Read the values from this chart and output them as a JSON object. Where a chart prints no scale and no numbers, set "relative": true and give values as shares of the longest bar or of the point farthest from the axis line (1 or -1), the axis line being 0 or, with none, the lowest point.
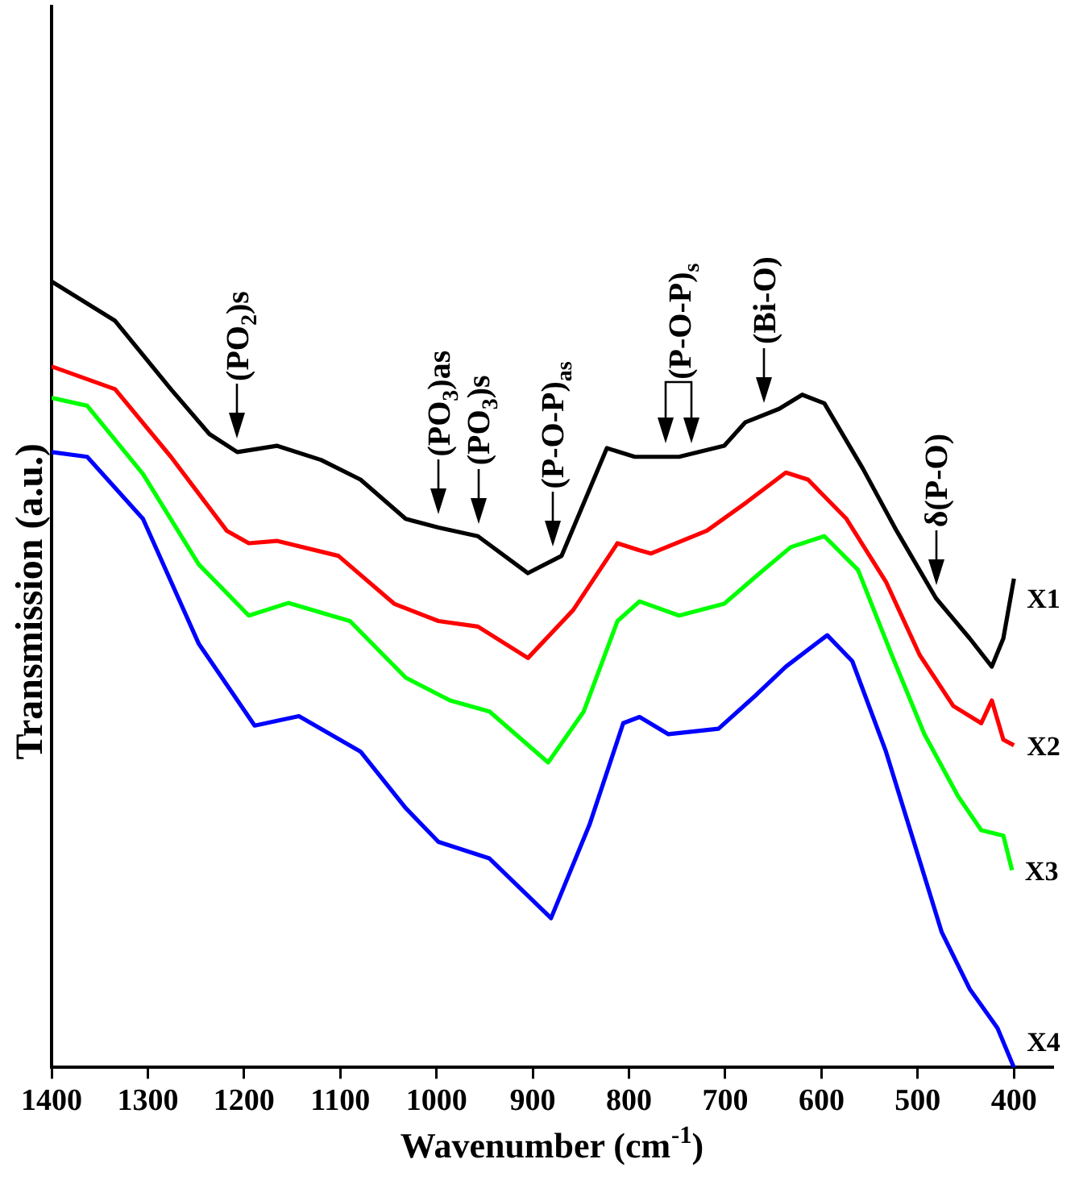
{
  "chart_data": {
    "type": "line",
    "relative": true,
    "xlabel": "Wavenumber (cm$^{-1}$)",
    "ylabel": "Transmission (a.u.)",
    "xlim": [
      1400,
      360
    ],
    "xticks": [
      1400,
      1300,
      1200,
      1100,
      1000,
      900,
      800,
      700,
      600,
      500,
      400
    ],
    "series": [
      {
        "name": "X1",
        "color": "#000000",
        "x": [
          1400,
          1334,
          1276,
          1236,
          1207,
          1166,
          1120,
          1079,
          1032,
          998,
          957,
          905,
          870,
          823,
          794,
          748,
          701,
          679,
          644,
          620,
          597,
          557,
          522,
          481,
          446,
          423,
          411,
          400
        ],
        "values": [
          1.0,
          0.95,
          0.863,
          0.806,
          0.783,
          0.791,
          0.773,
          0.748,
          0.698,
          0.687,
          0.676,
          0.629,
          0.651,
          0.788,
          0.777,
          0.777,
          0.791,
          0.821,
          0.838,
          0.856,
          0.845,
          0.762,
          0.683,
          0.597,
          0.546,
          0.51,
          0.546,
          0.622
        ]
      },
      {
        "name": "X2",
        "color": "#ff0000",
        "x": [
          1400,
          1334,
          1276,
          1218,
          1195,
          1166,
          1102,
          1044,
          998,
          957,
          905,
          858,
          812,
          789,
          777,
          719,
          678,
          637,
          614,
          574,
          533,
          498,
          463,
          434,
          423,
          411,
          400
        ],
        "values": [
          0.892,
          0.863,
          0.777,
          0.683,
          0.667,
          0.67,
          0.651,
          0.59,
          0.568,
          0.561,
          0.521,
          0.582,
          0.667,
          0.658,
          0.654,
          0.683,
          0.719,
          0.757,
          0.748,
          0.698,
          0.618,
          0.525,
          0.46,
          0.438,
          0.467,
          0.417,
          0.41
        ]
      },
      {
        "name": "X3",
        "color": "#00ff00",
        "x": [
          1400,
          1363,
          1305,
          1247,
          1195,
          1154,
          1090,
          1032,
          986,
          945,
          884,
          847,
          812,
          789,
          748,
          701,
          667,
          632,
          597,
          562,
          527,
          493,
          458,
          434,
          411,
          402
        ],
        "values": [
          0.852,
          0.842,
          0.755,
          0.64,
          0.575,
          0.591,
          0.568,
          0.496,
          0.467,
          0.453,
          0.388,
          0.453,
          0.568,
          0.593,
          0.575,
          0.59,
          0.626,
          0.662,
          0.676,
          0.633,
          0.525,
          0.424,
          0.345,
          0.302,
          0.295,
          0.251
        ]
      },
      {
        "name": "X4",
        "color": "#0000ff",
        "x": [
          1400,
          1363,
          1305,
          1247,
          1189,
          1143,
          1079,
          1032,
          998,
          945,
          881,
          841,
          806,
          789,
          759,
          707,
          667,
          637,
          594,
          568,
          533,
          504,
          475,
          446,
          417,
          400
        ],
        "values": [
          0.783,
          0.777,
          0.698,
          0.539,
          0.435,
          0.447,
          0.402,
          0.33,
          0.287,
          0.266,
          0.19,
          0.309,
          0.438,
          0.446,
          0.424,
          0.431,
          0.475,
          0.51,
          0.55,
          0.517,
          0.402,
          0.287,
          0.172,
          0.1,
          0.05,
          0.0
        ]
      }
    ],
    "annotations": [
      {
        "text": "(PO$_{2}$)s",
        "x": 1207,
        "y": 0.783
      },
      {
        "text": "(PO$_{3}$)as",
        "x": 998,
        "y": 0.687
      },
      {
        "text": "(PO$_{3}$)s",
        "x": 957,
        "y": 0.676
      },
      {
        "text": "(P-O-P)$_{as}$",
        "x": 880,
        "y": 0.646
      },
      {
        "text": "(P-O-P)$_{s}$",
        "x": 748,
        "y": 0.777
      },
      {
        "text": "(Bi-O)",
        "x": 660,
        "y": 0.83
      },
      {
        "text": "δ(P-O)",
        "x": 481,
        "y": 0.597
      }
    ]
  }
}
